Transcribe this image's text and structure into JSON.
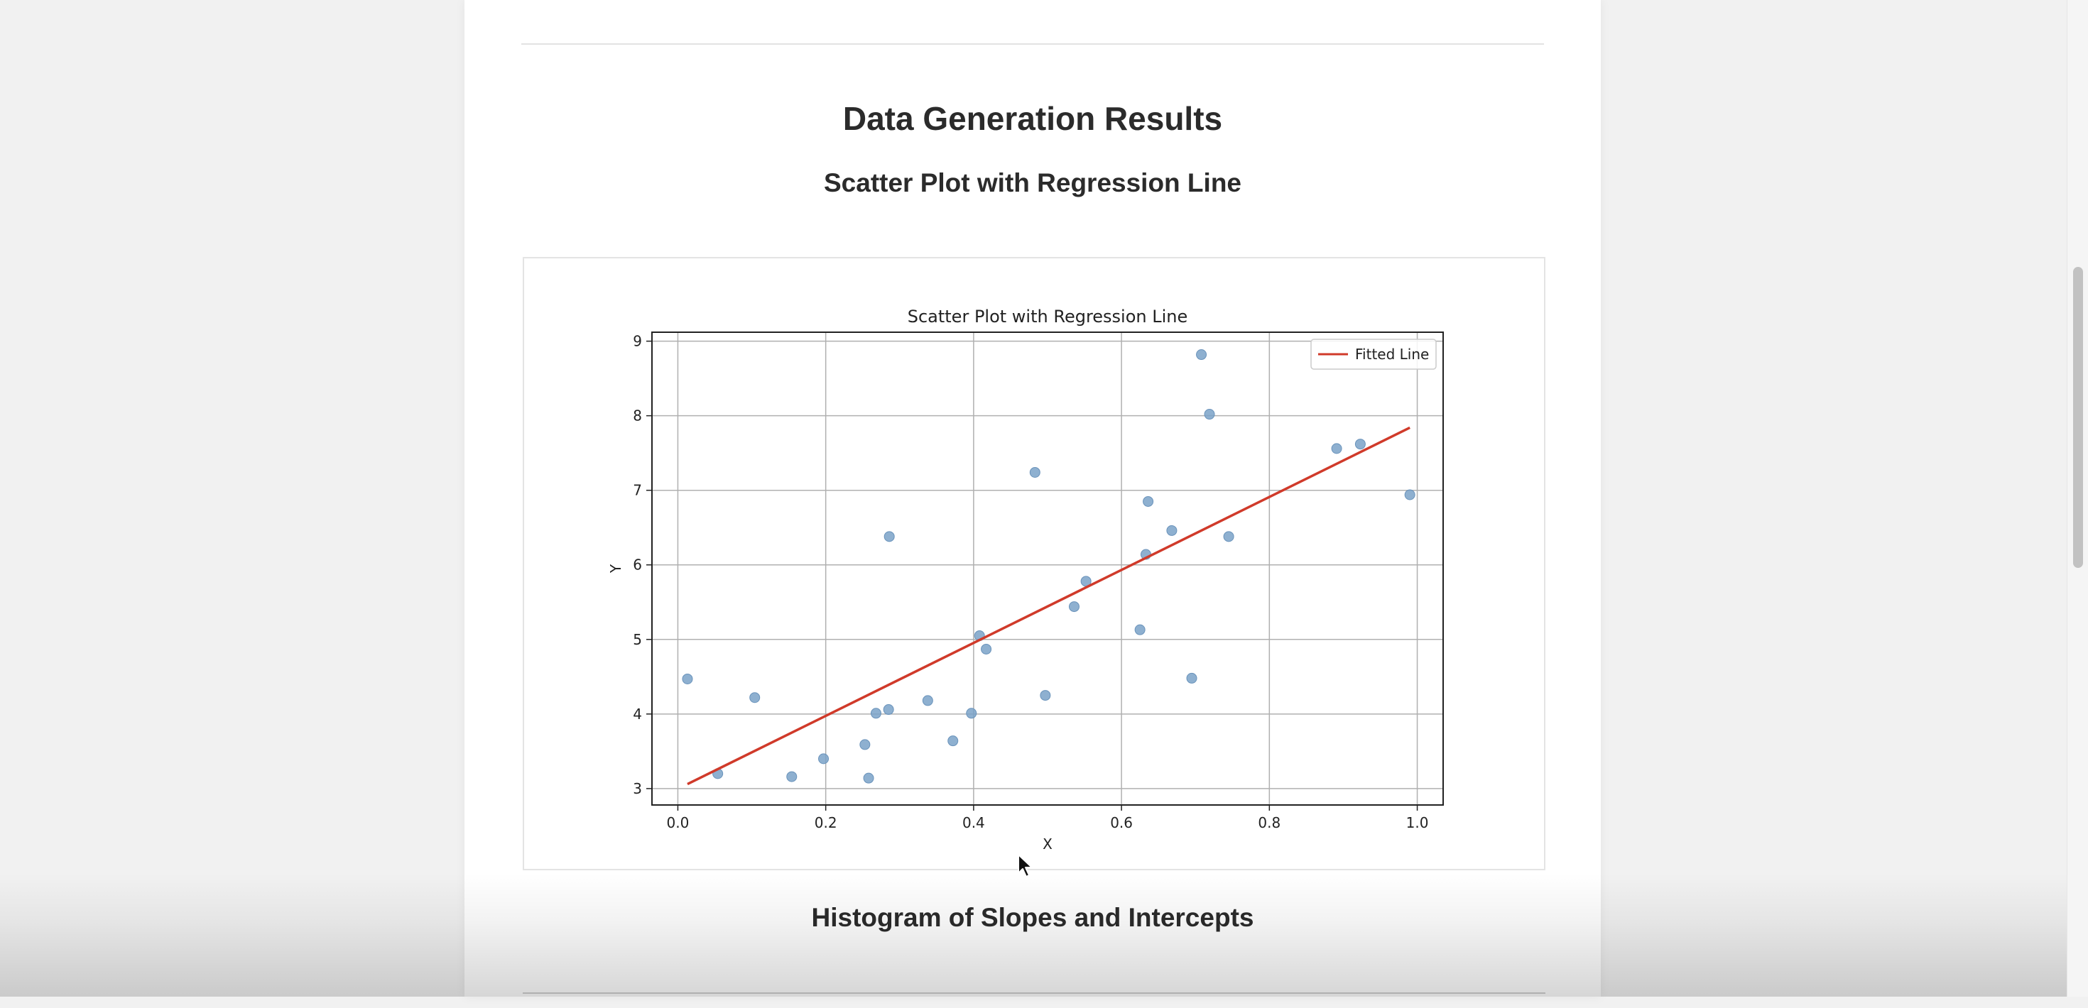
{
  "page": {
    "main_heading": "Data Generation Results",
    "scatter_heading": "Scatter Plot with Regression Line",
    "histogram_heading": "Histogram of Slopes and Intercepts"
  },
  "chart_data": {
    "type": "scatter",
    "title": "Scatter Plot with Regression Line",
    "xlabel": "X",
    "ylabel": "Y",
    "xlim": [
      -0.035,
      1.035
    ],
    "ylim": [
      2.78,
      9.12
    ],
    "xticks": [
      "0.0",
      "0.2",
      "0.4",
      "0.6",
      "0.8",
      "1.0"
    ],
    "xtick_values": [
      0.0,
      0.2,
      0.4,
      0.6,
      0.8,
      1.0
    ],
    "yticks": [
      "3",
      "4",
      "5",
      "6",
      "7",
      "8",
      "9"
    ],
    "ytick_values": [
      3,
      4,
      5,
      6,
      7,
      8,
      9
    ],
    "grid": true,
    "legend_position": "top-right",
    "points_color": "#7aa2c8",
    "line_color": "#d03a2a",
    "points": [
      {
        "x": 0.013,
        "y": 4.47
      },
      {
        "x": 0.054,
        "y": 3.2
      },
      {
        "x": 0.104,
        "y": 4.22
      },
      {
        "x": 0.154,
        "y": 3.16
      },
      {
        "x": 0.197,
        "y": 3.4
      },
      {
        "x": 0.253,
        "y": 3.59
      },
      {
        "x": 0.258,
        "y": 3.14
      },
      {
        "x": 0.268,
        "y": 4.01
      },
      {
        "x": 0.285,
        "y": 4.06
      },
      {
        "x": 0.286,
        "y": 6.38
      },
      {
        "x": 0.338,
        "y": 4.18
      },
      {
        "x": 0.372,
        "y": 3.64
      },
      {
        "x": 0.397,
        "y": 4.01
      },
      {
        "x": 0.408,
        "y": 5.05
      },
      {
        "x": 0.417,
        "y": 4.87
      },
      {
        "x": 0.483,
        "y": 7.24
      },
      {
        "x": 0.497,
        "y": 4.25
      },
      {
        "x": 0.536,
        "y": 5.44
      },
      {
        "x": 0.552,
        "y": 5.78
      },
      {
        "x": 0.625,
        "y": 5.13
      },
      {
        "x": 0.633,
        "y": 6.14
      },
      {
        "x": 0.636,
        "y": 6.85
      },
      {
        "x": 0.668,
        "y": 6.46
      },
      {
        "x": 0.695,
        "y": 4.48
      },
      {
        "x": 0.708,
        "y": 8.82
      },
      {
        "x": 0.719,
        "y": 8.02
      },
      {
        "x": 0.745,
        "y": 6.38
      },
      {
        "x": 0.891,
        "y": 7.56
      },
      {
        "x": 0.923,
        "y": 7.62
      },
      {
        "x": 0.99,
        "y": 6.94
      }
    ],
    "series": [
      {
        "name": "Fitted Line",
        "type": "line",
        "x": [
          0.013,
          0.99
        ],
        "y": [
          3.06,
          7.84
        ]
      }
    ]
  }
}
